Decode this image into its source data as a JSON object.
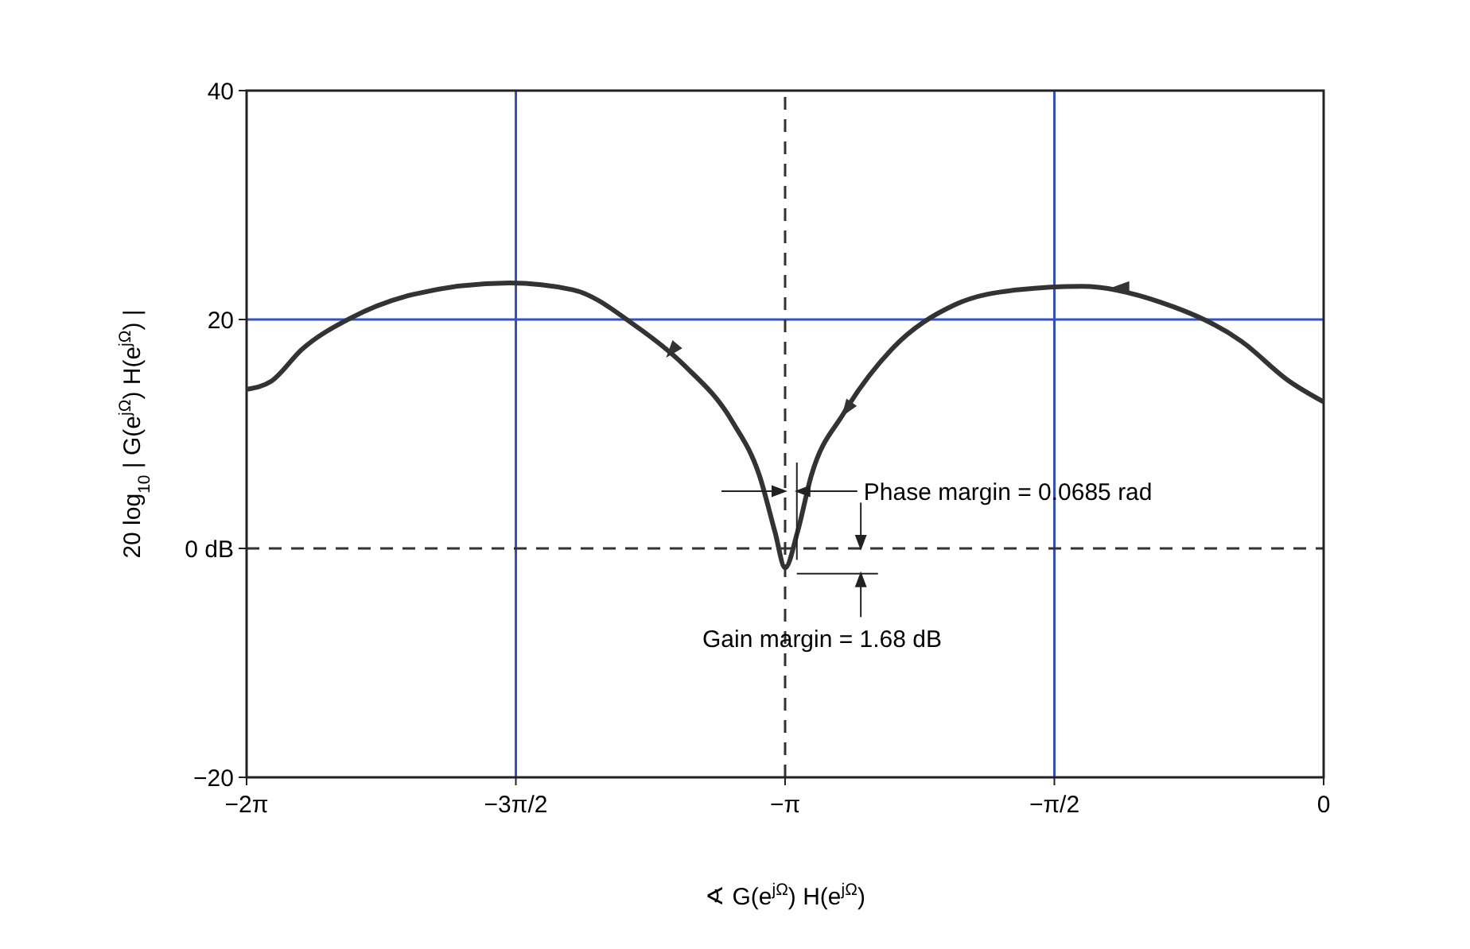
{
  "chart_data": {
    "type": "line",
    "xlabel": "∢ G(e$^{jΩ}$) H(e$^{jΩ}$)",
    "ylabel": "20 log$_{10}$ | G(e$^{jΩ}$) H(e$^{jΩ}$) |",
    "x": [
      -6.283,
      -6.14,
      -5.96,
      -5.68,
      -5.31,
      -4.75,
      -4.38,
      -4.01,
      -3.73,
      -3.45,
      -3.29,
      -3.2,
      -3.1416,
      -3.07,
      -2.99,
      -2.8,
      -2.52,
      -2.15,
      -1.78,
      -1.41,
      -0.95,
      -0.48,
      -0.2,
      0
    ],
    "series": [
      {
        "color": "#333333",
        "values": [
          13.9,
          14.6,
          17.4,
          20.1,
          22.2,
          23.2,
          22.6,
          19.4,
          16.0,
          11.1,
          6.3,
          1.4,
          -1.7,
          1.4,
          6.3,
          11.8,
          17.4,
          21.3,
          22.6,
          22.9,
          21.5,
          18.1,
          14.6,
          12.8
        ]
      }
    ],
    "xlim": [
      -6.2832,
      0
    ],
    "xticks": [
      {
        "value": -6.2832,
        "label": "−2π"
      },
      {
        "value": -4.7124,
        "label": "−3π/2"
      },
      {
        "value": -3.1416,
        "label": "−π"
      },
      {
        "value": -1.5708,
        "label": "−π/2"
      },
      0
    ],
    "ylim": [
      -20,
      40
    ],
    "yticks": [
      {
        "value": -20,
        "label": "−20"
      },
      {
        "value": 0,
        "label": "0 dB"
      },
      20,
      40
    ],
    "ref_lines": [
      {
        "axis": "x",
        "value": -4.7124,
        "color": "#3050d0"
      },
      {
        "axis": "x",
        "value": -1.5708,
        "color": "#3050d0"
      },
      {
        "axis": "y",
        "value": 20,
        "color": "#3050d0"
      },
      {
        "axis": "x",
        "value": -3.1416,
        "color": "#333333",
        "line_style": "dashed"
      },
      {
        "axis": "y",
        "value": 0,
        "color": "#333333",
        "line_style": "dashed"
      }
    ],
    "annotations": [
      {
        "text": "Phase margin = 0.0685 rad",
        "x": -3.0731,
        "y": 5
      },
      {
        "text": "Gain margin = 1.68 dB",
        "x": -3.1416,
        "y": -1.7
      }
    ],
    "grid": false,
    "marker": "none",
    "line_style": "solid"
  }
}
